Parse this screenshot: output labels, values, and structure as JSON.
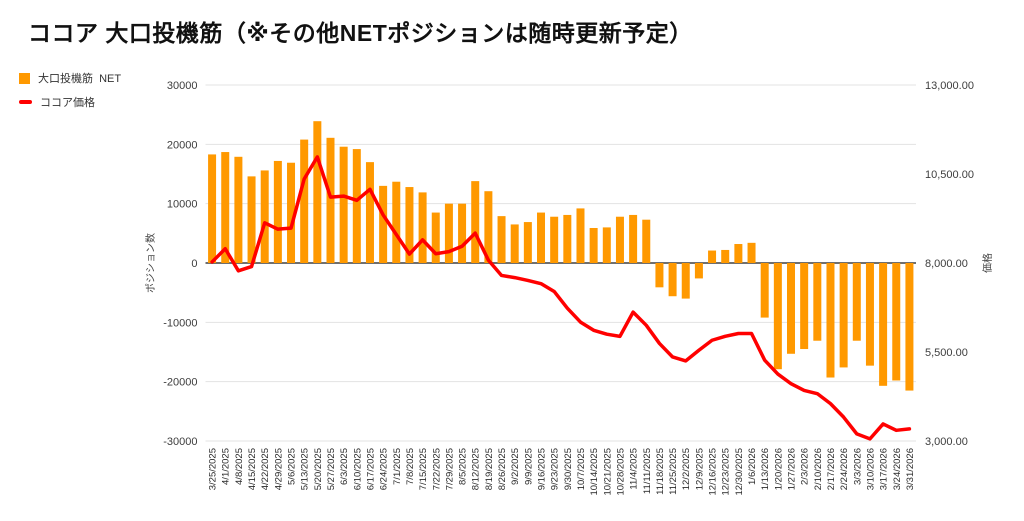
{
  "title": "ココア 大口投機筋（※その他NETポジションは随時更新予定）",
  "legend": {
    "items": [
      {
        "label": "大口投機筋  NET",
        "color": "#FF9900",
        "shape": "square"
      },
      {
        "label": "ココア価格",
        "color": "#FF0000",
        "shape": "dash"
      }
    ]
  },
  "colors": {
    "bar": "#FF9900",
    "line": "#FF0000",
    "grid": "#e3e3e3",
    "zero_axis": "#6f6f6f",
    "tick_text": "#3d3d3d",
    "axis_title_text": "#444444"
  },
  "chart_data": {
    "type": "bar",
    "subtype": "bar+line dual-axis",
    "title": "ココア 大口投機筋（※その他NETポジションは随時更新予定）",
    "grid": true,
    "legend_position": "top-left",
    "categories": [
      "3/25/2025",
      "4/1/2025",
      "4/8/2025",
      "4/15/2025",
      "4/22/2025",
      "4/29/2025",
      "5/6/2025",
      "5/13/2025",
      "5/20/2025",
      "5/27/2025",
      "6/3/2025",
      "6/10/2025",
      "6/17/2025",
      "6/24/2025",
      "7/1/2025",
      "7/8/2025",
      "7/15/2025",
      "7/22/2025",
      "7/29/2025",
      "8/5/2025",
      "8/12/2025",
      "8/19/2025",
      "8/26/2025",
      "9/2/2025",
      "9/9/2025",
      "9/16/2025",
      "9/23/2025",
      "9/30/2025",
      "10/7/2025",
      "10/14/2025",
      "10/21/2025",
      "10/28/2025",
      "11/4/2025",
      "11/11/2025",
      "11/18/2025",
      "11/25/2025",
      "12/2/2025",
      "12/9/2025",
      "12/16/2025",
      "12/23/2025",
      "12/30/2025",
      "1/6/2026",
      "1/13/2026",
      "1/20/2026",
      "1/27/2026",
      "2/3/2026",
      "2/10/2026",
      "2/17/2026",
      "2/24/2026",
      "3/3/2026",
      "3/10/2026",
      "3/17/2026",
      "3/24/2026",
      "3/31/2026"
    ],
    "series": [
      {
        "name": "大口投機筋 NET",
        "type": "bar",
        "axis": "left",
        "color": "#FF9900",
        "values": [
          18300,
          18700,
          17900,
          14600,
          15600,
          17200,
          16900,
          20800,
          23900,
          21100,
          19600,
          19200,
          17000,
          13000,
          13700,
          12800,
          11900,
          8500,
          10000,
          10000,
          13800,
          12100,
          7900,
          6500,
          6900,
          8500,
          7800,
          8100,
          9200,
          5900,
          6000,
          7800,
          8100,
          7300,
          -4100,
          -5600,
          -6000,
          -2600,
          2100,
          2200,
          3200,
          3400,
          -9200,
          -17900,
          -15300,
          -14500,
          -13100,
          -19300,
          -17600,
          -13100,
          -17300,
          -20700,
          -19800,
          -21500
        ]
      },
      {
        "name": "ココア価格",
        "type": "line",
        "axis": "right",
        "color": "#FF0000",
        "values": [
          8030,
          8400,
          7780,
          7900,
          9130,
          8950,
          8980,
          10360,
          10980,
          9850,
          9880,
          9760,
          10070,
          9350,
          8800,
          8250,
          8650,
          8260,
          8320,
          8470,
          8840,
          8080,
          7650,
          7590,
          7510,
          7420,
          7200,
          6730,
          6340,
          6110,
          6000,
          5940,
          6620,
          6250,
          5740,
          5360,
          5250,
          5550,
          5830,
          5940,
          6020,
          6020,
          5270,
          4880,
          4610,
          4420,
          4330,
          4050,
          3670,
          3200,
          3060,
          3480,
          3300,
          3340
        ]
      }
    ],
    "left_axis": {
      "title": "ポジション数",
      "min": -30000,
      "max": 30000,
      "ticks": [
        {
          "value": 30000,
          "label": "30000"
        },
        {
          "value": 20000,
          "label": "20000"
        },
        {
          "value": 10000,
          "label": "10000"
        },
        {
          "value": 0,
          "label": "0"
        },
        {
          "value": -10000,
          "label": "-10000"
        },
        {
          "value": -20000,
          "label": "-20000"
        },
        {
          "value": -30000,
          "label": "-30000"
        }
      ]
    },
    "right_axis": {
      "title": "価格",
      "min": 3000,
      "max": 13000,
      "ticks": [
        {
          "value": 13000,
          "label": "13,000.00"
        },
        {
          "value": 10500,
          "label": "10,500.00"
        },
        {
          "value": 8000,
          "label": "8,000.00"
        },
        {
          "value": 5500,
          "label": "5,500.00"
        },
        {
          "value": 3000,
          "label": "3,000.00"
        }
      ]
    }
  }
}
